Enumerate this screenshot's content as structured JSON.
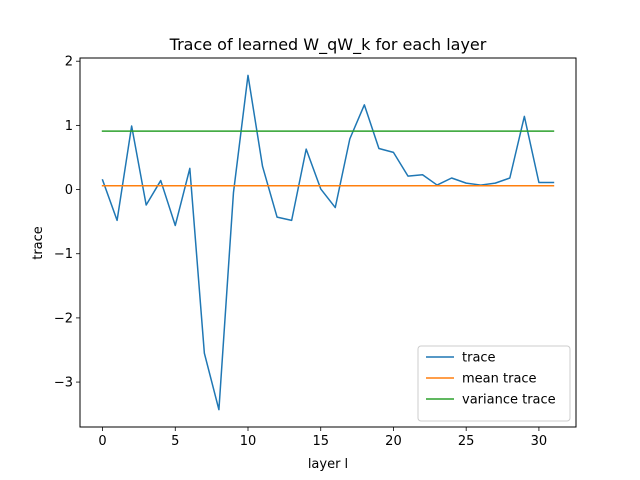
{
  "chart_data": {
    "type": "line",
    "title": "Trace of learned W_qW_k for each layer",
    "xlabel": "layer l",
    "ylabel": "trace",
    "xlim": [
      -1.55,
      32.55
    ],
    "ylim": [
      -3.7,
      2.05
    ],
    "xticks": [
      0,
      5,
      10,
      15,
      20,
      25,
      30
    ],
    "yticks": [
      -3,
      -2,
      -1,
      0,
      1,
      2
    ],
    "ytick_labels": [
      "−3",
      "−2",
      "−1",
      "0",
      "1",
      "2"
    ],
    "legend_position": "lower-right",
    "grid": false,
    "series": [
      {
        "name": "trace",
        "color": "#1f77b4",
        "x": [
          0,
          1,
          2,
          3,
          4,
          5,
          6,
          7,
          8,
          9,
          10,
          11,
          12,
          13,
          14,
          15,
          16,
          17,
          18,
          19,
          20,
          21,
          22,
          23,
          24,
          25,
          26,
          27,
          28,
          29,
          30,
          31
        ],
        "y": [
          0.15,
          -0.48,
          0.99,
          -0.24,
          0.14,
          -0.56,
          0.33,
          -2.55,
          -3.43,
          -0.05,
          1.78,
          0.36,
          -0.43,
          -0.48,
          0.63,
          0.01,
          -0.28,
          0.79,
          1.32,
          0.64,
          0.58,
          0.21,
          0.23,
          0.07,
          0.18,
          0.1,
          0.07,
          0.1,
          0.18,
          1.14,
          0.11,
          0.11
        ]
      },
      {
        "name": "mean trace",
        "color": "#ff7f0e",
        "x": [
          0,
          31
        ],
        "y": [
          0.06,
          0.06
        ]
      },
      {
        "name": "variance trace",
        "color": "#2ca02c",
        "x": [
          0,
          31
        ],
        "y": [
          0.91,
          0.91
        ]
      }
    ]
  }
}
